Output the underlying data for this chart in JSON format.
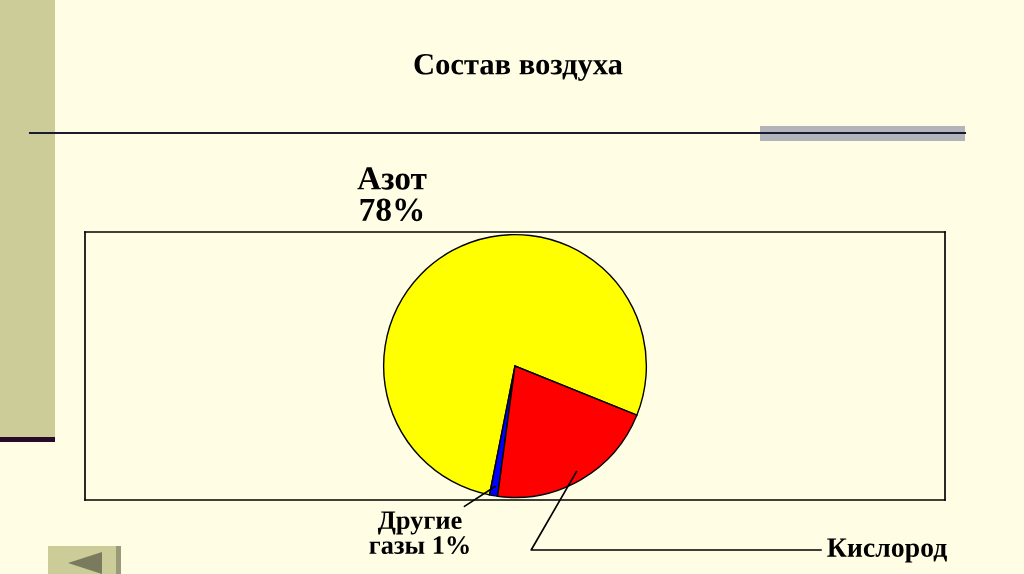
{
  "chart_data": {
    "type": "pie",
    "title": "Состав воздуха",
    "categories": [
      "Азот",
      "Другие газы",
      "Кислород"
    ],
    "values": [
      78,
      1,
      21
    ],
    "colors": [
      "#ffff00",
      "#0000ff",
      "#ff0000"
    ],
    "value_labels": [
      "78%",
      "1%",
      null
    ]
  }
}
